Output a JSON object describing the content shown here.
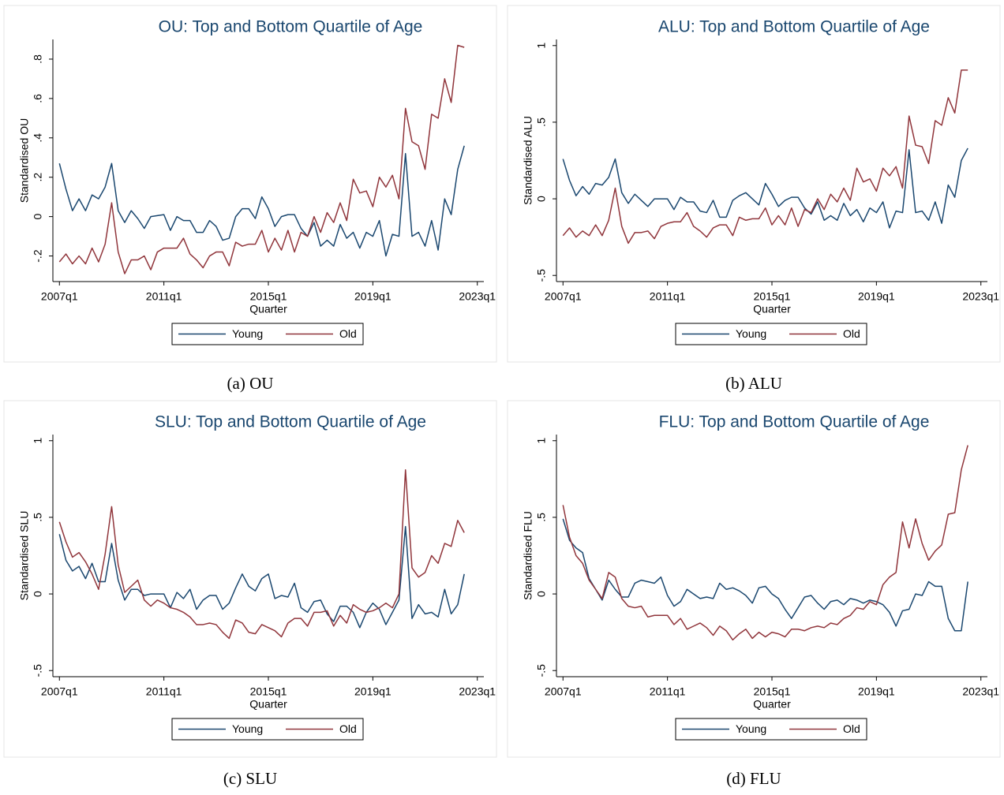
{
  "chart_data": [
    {
      "type": "line",
      "title": "OU: Top and Bottom Quartile of Age",
      "caption": "(a) OU",
      "xlabel": "Quarter",
      "ylabel": "Standardised OU",
      "x": [
        "2007q1",
        "2007q2",
        "2007q3",
        "2007q4",
        "2008q1",
        "2008q2",
        "2008q3",
        "2008q4",
        "2009q1",
        "2009q2",
        "2009q3",
        "2009q4",
        "2010q1",
        "2010q2",
        "2010q3",
        "2010q4",
        "2011q1",
        "2011q2",
        "2011q3",
        "2011q4",
        "2012q1",
        "2012q2",
        "2012q3",
        "2012q4",
        "2013q1",
        "2013q2",
        "2013q3",
        "2013q4",
        "2014q1",
        "2014q2",
        "2014q3",
        "2014q4",
        "2015q1",
        "2015q2",
        "2015q3",
        "2015q4",
        "2016q1",
        "2016q2",
        "2016q3",
        "2016q4",
        "2017q1",
        "2017q2",
        "2017q3",
        "2017q4",
        "2018q1",
        "2018q2",
        "2018q3",
        "2018q4",
        "2019q1",
        "2019q2",
        "2019q3",
        "2019q4",
        "2020q1",
        "2020q2",
        "2020q3",
        "2020q4",
        "2021q1",
        "2021q2",
        "2021q3",
        "2021q4",
        "2022q1",
        "2022q2",
        "2022q3"
      ],
      "xlim": [
        "2006q4",
        "2023q2"
      ],
      "xticks": [
        "2007q1",
        "2011q1",
        "2015q1",
        "2019q1",
        "2023q1"
      ],
      "ylim": [
        -0.33,
        0.9
      ],
      "yticks": [
        {
          "value": -0.2,
          "label": "-.2"
        },
        0,
        {
          "value": 0.2,
          "label": ".2"
        },
        {
          "value": 0.4,
          "label": ".4"
        },
        {
          "value": 0.6,
          "label": ".6"
        },
        {
          "value": 0.8,
          "label": ".8"
        }
      ],
      "grid": false,
      "legend": "bottom",
      "series": [
        {
          "name": "Young",
          "color": "#1a476f",
          "values": [
            0.27,
            0.14,
            0.03,
            0.09,
            0.03,
            0.11,
            0.09,
            0.15,
            0.27,
            0.03,
            -0.03,
            0.03,
            -0.01,
            -0.06,
            0,
            0.005,
            0.01,
            -0.07,
            0,
            -0.02,
            -0.02,
            -0.08,
            -0.08,
            -0.02,
            -0.05,
            -0.12,
            -0.11,
            0,
            0.04,
            0.04,
            -0.01,
            0.1,
            0.04,
            -0.05,
            0,
            0.01,
            0.01,
            -0.06,
            -0.1,
            -0.03,
            -0.15,
            -0.12,
            -0.15,
            -0.04,
            -0.11,
            -0.08,
            -0.16,
            -0.08,
            -0.1,
            -0.02,
            -0.2,
            -0.09,
            -0.1,
            0.32,
            -0.1,
            -0.08,
            -0.15,
            -0.02,
            -0.17,
            0.09,
            0.01,
            0.24,
            0.36
          ]
        },
        {
          "name": "Old",
          "color": "#90353b",
          "values": [
            -0.23,
            -0.19,
            -0.24,
            -0.2,
            -0.24,
            -0.16,
            -0.23,
            -0.14,
            0.07,
            -0.18,
            -0.29,
            -0.22,
            -0.22,
            -0.2,
            -0.27,
            -0.18,
            -0.16,
            -0.16,
            -0.16,
            -0.11,
            -0.19,
            -0.22,
            -0.26,
            -0.2,
            -0.18,
            -0.18,
            -0.25,
            -0.13,
            -0.15,
            -0.14,
            -0.14,
            -0.07,
            -0.18,
            -0.11,
            -0.17,
            -0.07,
            -0.18,
            -0.08,
            -0.1,
            0,
            -0.08,
            0.02,
            -0.03,
            0.07,
            -0.02,
            0.19,
            0.12,
            0.13,
            0.05,
            0.2,
            0.15,
            0.21,
            0.09,
            0.55,
            0.38,
            0.36,
            0.24,
            0.52,
            0.5,
            0.7,
            0.58,
            0.87,
            0.86
          ]
        }
      ]
    },
    {
      "type": "line",
      "title": "ALU: Top and Bottom Quartile of Age",
      "caption": "(b) ALU",
      "xlabel": "Quarter",
      "ylabel": "Standardised ALU",
      "x": [
        "2007q1",
        "2007q2",
        "2007q3",
        "2007q4",
        "2008q1",
        "2008q2",
        "2008q3",
        "2008q4",
        "2009q1",
        "2009q2",
        "2009q3",
        "2009q4",
        "2010q1",
        "2010q2",
        "2010q3",
        "2010q4",
        "2011q1",
        "2011q2",
        "2011q3",
        "2011q4",
        "2012q1",
        "2012q2",
        "2012q3",
        "2012q4",
        "2013q1",
        "2013q2",
        "2013q3",
        "2013q4",
        "2014q1",
        "2014q2",
        "2014q3",
        "2014q4",
        "2015q1",
        "2015q2",
        "2015q3",
        "2015q4",
        "2016q1",
        "2016q2",
        "2016q3",
        "2016q4",
        "2017q1",
        "2017q2",
        "2017q3",
        "2017q4",
        "2018q1",
        "2018q2",
        "2018q3",
        "2018q4",
        "2019q1",
        "2019q2",
        "2019q3",
        "2019q4",
        "2020q1",
        "2020q2",
        "2020q3",
        "2020q4",
        "2021q1",
        "2021q2",
        "2021q3",
        "2021q4",
        "2022q1",
        "2022q2",
        "2022q3"
      ],
      "xlim": [
        "2006q4",
        "2023q2"
      ],
      "xticks": [
        "2007q1",
        "2011q1",
        "2015q1",
        "2019q1",
        "2023q1"
      ],
      "ylim": [
        -0.54,
        1.04
      ],
      "yticks": [
        {
          "value": -0.5,
          "label": "-.5"
        },
        0,
        {
          "value": 0.5,
          "label": ".5"
        },
        1
      ],
      "grid": false,
      "legend": "bottom",
      "series": [
        {
          "name": "Young",
          "color": "#1a476f",
          "values": [
            0.26,
            0.12,
            0.02,
            0.08,
            0.03,
            0.1,
            0.09,
            0.14,
            0.26,
            0.04,
            -0.03,
            0.03,
            -0.01,
            -0.05,
            0,
            0,
            0,
            -0.07,
            0.01,
            -0.02,
            -0.02,
            -0.08,
            -0.09,
            -0.01,
            -0.12,
            -0.12,
            -0.01,
            0.02,
            0.04,
            0,
            -0.04,
            0.1,
            0.03,
            -0.05,
            -0.01,
            0.01,
            0.01,
            -0.06,
            -0.1,
            -0.02,
            -0.14,
            -0.11,
            -0.14,
            -0.03,
            -0.11,
            -0.07,
            -0.15,
            -0.06,
            -0.09,
            -0.02,
            -0.19,
            -0.08,
            -0.09,
            0.32,
            -0.09,
            -0.08,
            -0.14,
            -0.02,
            -0.16,
            0.09,
            0.01,
            0.25,
            0.33
          ]
        },
        {
          "name": "Old",
          "color": "#90353b",
          "values": [
            -0.24,
            -0.19,
            -0.25,
            -0.21,
            -0.24,
            -0.17,
            -0.24,
            -0.14,
            0.07,
            -0.18,
            -0.29,
            -0.22,
            -0.22,
            -0.21,
            -0.26,
            -0.18,
            -0.16,
            -0.15,
            -0.15,
            -0.09,
            -0.18,
            -0.21,
            -0.25,
            -0.19,
            -0.17,
            -0.17,
            -0.24,
            -0.12,
            -0.14,
            -0.13,
            -0.13,
            -0.06,
            -0.17,
            -0.11,
            -0.17,
            -0.06,
            -0.18,
            -0.07,
            -0.09,
            0,
            -0.07,
            0.03,
            -0.02,
            0.07,
            -0.01,
            0.2,
            0.11,
            0.13,
            0.05,
            0.2,
            0.15,
            0.21,
            0.07,
            0.54,
            0.35,
            0.34,
            0.23,
            0.51,
            0.48,
            0.66,
            0.56,
            0.84,
            0.84
          ]
        }
      ]
    },
    {
      "type": "line",
      "title": "SLU: Top and Bottom Quartile of Age",
      "caption": "(c) SLU",
      "xlabel": "Quarter",
      "ylabel": "Standardised SLU",
      "x": [
        "2007q1",
        "2007q2",
        "2007q3",
        "2007q4",
        "2008q1",
        "2008q2",
        "2008q3",
        "2008q4",
        "2009q1",
        "2009q2",
        "2009q3",
        "2009q4",
        "2010q1",
        "2010q2",
        "2010q3",
        "2010q4",
        "2011q1",
        "2011q2",
        "2011q3",
        "2011q4",
        "2012q1",
        "2012q2",
        "2012q3",
        "2012q4",
        "2013q1",
        "2013q2",
        "2013q3",
        "2013q4",
        "2014q1",
        "2014q2",
        "2014q3",
        "2014q4",
        "2015q1",
        "2015q2",
        "2015q3",
        "2015q4",
        "2016q1",
        "2016q2",
        "2016q3",
        "2016q4",
        "2017q1",
        "2017q2",
        "2017q3",
        "2017q4",
        "2018q1",
        "2018q2",
        "2018q3",
        "2018q4",
        "2019q1",
        "2019q2",
        "2019q3",
        "2019q4",
        "2020q1",
        "2020q2",
        "2020q3",
        "2020q4",
        "2021q1",
        "2021q2",
        "2021q3",
        "2021q4",
        "2022q1",
        "2022q2",
        "2022q3"
      ],
      "xlim": [
        "2006q4",
        "2023q2"
      ],
      "xticks": [
        "2007q1",
        "2011q1",
        "2015q1",
        "2019q1",
        "2023q1"
      ],
      "ylim": [
        -0.54,
        1.04
      ],
      "yticks": [
        {
          "value": -0.5,
          "label": "-.5"
        },
        0,
        {
          "value": 0.5,
          "label": ".5"
        },
        1
      ],
      "grid": false,
      "legend": "bottom",
      "series": [
        {
          "name": "Young",
          "color": "#1a476f",
          "values": [
            0.39,
            0.22,
            0.15,
            0.18,
            0.1,
            0.2,
            0.08,
            0.08,
            0.33,
            0.09,
            -0.04,
            0.03,
            0.03,
            -0.01,
            0,
            0,
            0,
            -0.09,
            0.01,
            -0.03,
            0.03,
            -0.1,
            -0.04,
            -0.01,
            -0.01,
            -0.1,
            -0.06,
            0.04,
            0.13,
            0.05,
            0.02,
            0.1,
            0.13,
            -0.03,
            -0.01,
            -0.02,
            0.07,
            -0.09,
            -0.12,
            -0.05,
            -0.04,
            -0.13,
            -0.18,
            -0.08,
            -0.08,
            -0.12,
            -0.22,
            -0.12,
            -0.06,
            -0.1,
            -0.2,
            -0.12,
            -0.04,
            0.44,
            -0.16,
            -0.07,
            -0.13,
            -0.12,
            -0.15,
            0.03,
            -0.13,
            -0.07,
            0.13
          ]
        },
        {
          "name": "Old",
          "color": "#90353b",
          "values": [
            0.47,
            0.34,
            0.24,
            0.27,
            0.21,
            0.13,
            0.03,
            0.26,
            0.57,
            0.19,
            0.01,
            0.05,
            0.09,
            -0.04,
            -0.08,
            -0.04,
            -0.06,
            -0.09,
            -0.1,
            -0.12,
            -0.15,
            -0.2,
            -0.2,
            -0.19,
            -0.2,
            -0.25,
            -0.29,
            -0.17,
            -0.19,
            -0.25,
            -0.26,
            -0.2,
            -0.22,
            -0.24,
            -0.28,
            -0.19,
            -0.16,
            -0.16,
            -0.21,
            -0.12,
            -0.12,
            -0.11,
            -0.21,
            -0.14,
            -0.19,
            -0.07,
            -0.1,
            -0.12,
            -0.11,
            -0.09,
            -0.06,
            -0.09,
            0,
            0.81,
            0.17,
            0.11,
            0.14,
            0.25,
            0.2,
            0.33,
            0.31,
            0.48,
            0.4
          ]
        }
      ]
    },
    {
      "type": "line",
      "title": "FLU: Top and Bottom Quartile of Age",
      "caption": "(d) FLU",
      "xlabel": "Quarter",
      "ylabel": "Standardised FLU",
      "x": [
        "2007q1",
        "2007q2",
        "2007q3",
        "2007q4",
        "2008q1",
        "2008q2",
        "2008q3",
        "2008q4",
        "2009q1",
        "2009q2",
        "2009q3",
        "2009q4",
        "2010q1",
        "2010q2",
        "2010q3",
        "2010q4",
        "2011q1",
        "2011q2",
        "2011q3",
        "2011q4",
        "2012q1",
        "2012q2",
        "2012q3",
        "2012q4",
        "2013q1",
        "2013q2",
        "2013q3",
        "2013q4",
        "2014q1",
        "2014q2",
        "2014q3",
        "2014q4",
        "2015q1",
        "2015q2",
        "2015q3",
        "2015q4",
        "2016q1",
        "2016q2",
        "2016q3",
        "2016q4",
        "2017q1",
        "2017q2",
        "2017q3",
        "2017q4",
        "2018q1",
        "2018q2",
        "2018q3",
        "2018q4",
        "2019q1",
        "2019q2",
        "2019q3",
        "2019q4",
        "2020q1",
        "2020q2",
        "2020q3",
        "2020q4",
        "2021q1",
        "2021q2",
        "2021q3",
        "2021q4",
        "2022q1",
        "2022q2",
        "2022q3"
      ],
      "xlim": [
        "2006q4",
        "2023q2"
      ],
      "xticks": [
        "2007q1",
        "2011q1",
        "2015q1",
        "2019q1",
        "2023q1"
      ],
      "ylim": [
        -0.54,
        1.04
      ],
      "yticks": [
        {
          "value": -0.5,
          "label": "-.5"
        },
        0,
        {
          "value": 0.5,
          "label": ".5"
        },
        1
      ],
      "grid": false,
      "legend": "bottom",
      "series": [
        {
          "name": "Young",
          "color": "#1a476f",
          "values": [
            0.49,
            0.35,
            0.3,
            0.27,
            0.1,
            0.03,
            -0.04,
            0.09,
            0.03,
            -0.02,
            -0.02,
            0.07,
            0.09,
            0.08,
            0.07,
            0.11,
            -0.01,
            -0.08,
            -0.05,
            0.03,
            0,
            -0.03,
            -0.02,
            -0.03,
            0.07,
            0.03,
            0.04,
            0.02,
            -0.01,
            -0.06,
            0.04,
            0.05,
            0,
            -0.03,
            -0.1,
            -0.16,
            -0.09,
            -0.02,
            -0.01,
            -0.06,
            -0.1,
            -0.05,
            -0.04,
            -0.07,
            -0.03,
            -0.04,
            -0.06,
            -0.04,
            -0.05,
            -0.07,
            -0.12,
            -0.21,
            -0.11,
            -0.1,
            0,
            -0.01,
            0.08,
            0.05,
            0.05,
            -0.16,
            -0.24,
            -0.24,
            0.08
          ]
        },
        {
          "name": "Old",
          "color": "#90353b",
          "values": [
            0.58,
            0.37,
            0.25,
            0.2,
            0.09,
            0.03,
            -0.03,
            0.14,
            0.11,
            -0.03,
            -0.08,
            -0.09,
            -0.08,
            -0.15,
            -0.14,
            -0.14,
            -0.14,
            -0.2,
            -0.16,
            -0.23,
            -0.21,
            -0.19,
            -0.22,
            -0.27,
            -0.21,
            -0.24,
            -0.3,
            -0.26,
            -0.23,
            -0.29,
            -0.25,
            -0.28,
            -0.25,
            -0.26,
            -0.28,
            -0.23,
            -0.23,
            -0.24,
            -0.22,
            -0.21,
            -0.22,
            -0.19,
            -0.2,
            -0.16,
            -0.14,
            -0.09,
            -0.1,
            -0.05,
            -0.07,
            0.06,
            0.11,
            0.14,
            0.47,
            0.3,
            0.49,
            0.33,
            0.22,
            0.28,
            0.32,
            0.52,
            0.53,
            0.81,
            0.97
          ]
        }
      ]
    }
  ]
}
